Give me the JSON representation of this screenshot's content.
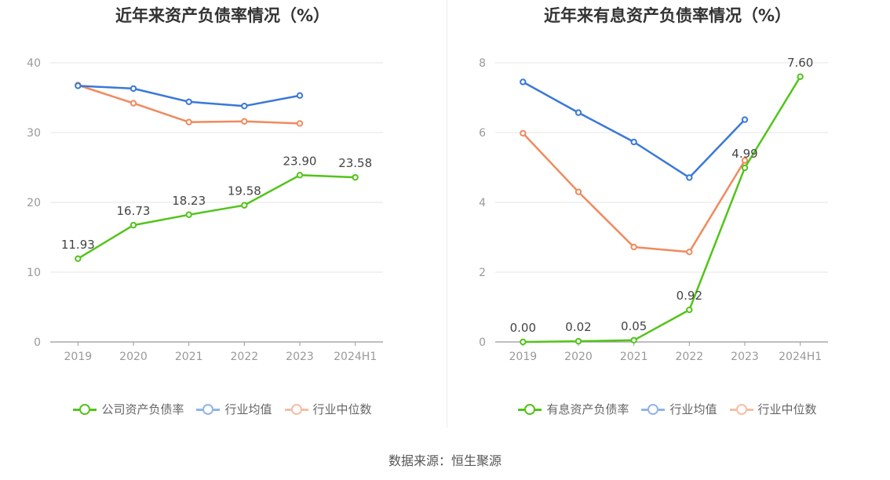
{
  "source_label": "数据来源：恒生聚源",
  "colors": {
    "green": "#52c41a",
    "blue": "#3a78d8",
    "orange": "#f08a5d",
    "grid": "#e6e6e6",
    "axis": "#999999",
    "tick": "#999999",
    "label": "#444444"
  },
  "chart_data": [
    {
      "type": "line",
      "title": "近年来资产负债率情况（%）",
      "categories": [
        "2019",
        "2020",
        "2021",
        "2022",
        "2023",
        "2024H1"
      ],
      "ylim": [
        0,
        40
      ],
      "yticks": [
        0,
        10,
        20,
        30,
        40
      ],
      "series": [
        {
          "name": "公司资产负债率",
          "color_key": "green",
          "values": [
            11.93,
            16.73,
            18.23,
            19.58,
            23.9,
            23.58
          ],
          "labels": [
            "11.93",
            "16.73",
            "18.23",
            "19.58",
            "23.90",
            "23.58"
          ]
        },
        {
          "name": "行业均值",
          "color_key": "blue",
          "values": [
            36.7,
            36.3,
            34.4,
            33.8,
            35.3,
            null
          ]
        },
        {
          "name": "行业中位数",
          "color_key": "orange",
          "values": [
            36.8,
            34.2,
            31.5,
            31.6,
            31.3,
            null
          ]
        }
      ]
    },
    {
      "type": "line",
      "title": "近年来有息资产负债率情况（%）",
      "categories": [
        "2019",
        "2020",
        "2021",
        "2022",
        "2023",
        "2024H1"
      ],
      "ylim": [
        0,
        8
      ],
      "yticks": [
        0,
        2,
        4,
        6,
        8
      ],
      "series": [
        {
          "name": "有息资产负债率",
          "color_key": "green",
          "values": [
            0.0,
            0.02,
            0.05,
            0.92,
            4.99,
            7.6
          ],
          "labels": [
            "0.00",
            "0.02",
            "0.05",
            "0.92",
            "4.99",
            "7.60"
          ]
        },
        {
          "name": "行业均值",
          "color_key": "blue",
          "values": [
            7.45,
            6.57,
            5.73,
            4.71,
            6.37,
            null
          ]
        },
        {
          "name": "行业中位数",
          "color_key": "orange",
          "values": [
            5.98,
            4.3,
            2.72,
            2.58,
            5.2,
            null
          ]
        }
      ]
    }
  ]
}
